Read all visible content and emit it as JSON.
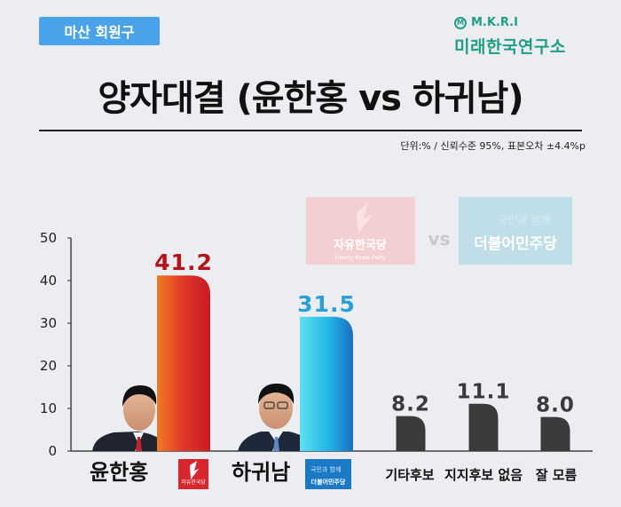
{
  "header": {
    "region_badge": "마산 회원구",
    "logo_mark": "M",
    "logo_abbr": "M.K.R.I",
    "logo_name": "미래한국연구소",
    "title": "양자대결 (윤한홍 vs 하귀남)",
    "note": "단위:% / 신뢰수준 95%, 표본오차 ±4.4%p"
  },
  "matchup": {
    "party1": "자유한국당",
    "party1_sub": "Liberty Korea Party",
    "vs": "vs",
    "party2": "더불어민주당",
    "party2_slogan": "국민과 함께",
    "party1_small": "자유한국당",
    "party2_small": "더불어민주당",
    "party2_small_slogan": "국민과 함께"
  },
  "chart_data": {
    "type": "bar",
    "categories": [
      "윤한홍",
      "하귀남",
      "기타후보",
      "지지후보 없음",
      "잘 모름"
    ],
    "values": [
      41.2,
      31.5,
      8.2,
      11.1,
      8.0
    ],
    "value_labels": [
      "41.2",
      "31.5",
      "8.2",
      "11.1",
      "8.0"
    ],
    "ylim": [
      0,
      50
    ],
    "yticks": [
      "0",
      "10",
      "20",
      "30",
      "40",
      "50"
    ],
    "colors": [
      "#d8262e",
      "#1fb5e6",
      "#3a3a3a",
      "#3a3a3a",
      "#3a3a3a"
    ],
    "label_colors": [
      "#b3141b",
      "#2a9fd8",
      "#3a3a3a",
      "#3a3a3a",
      "#3a3a3a"
    ],
    "grid": false
  }
}
